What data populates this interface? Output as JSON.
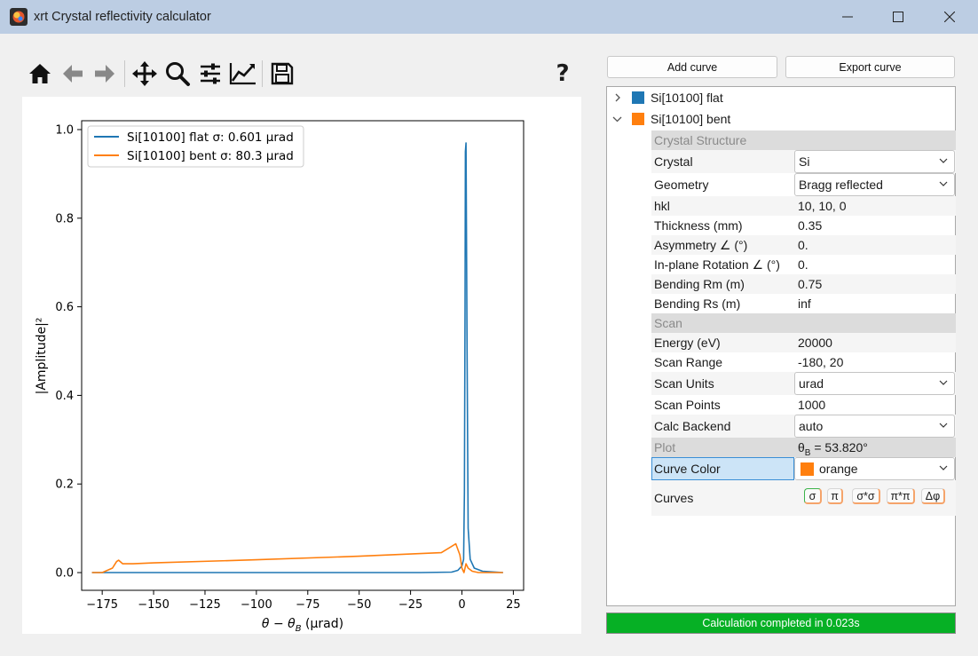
{
  "window": {
    "title": "xrt Crystal reflectivity calculator"
  },
  "toolbar": {
    "icons": [
      "home-icon",
      "back-arrow-icon",
      "forward-arrow-icon",
      "pan-icon",
      "zoom-icon",
      "subplots-icon",
      "edit-axis-icon",
      "save-icon",
      "help-icon"
    ],
    "help_label": "?"
  },
  "buttons": {
    "add_curve": "Add curve",
    "export_curve": "Export curve"
  },
  "tree": {
    "curves": [
      {
        "name": "Si[10100] flat",
        "color": "#1f77b4",
        "expanded": false
      },
      {
        "name": "Si[10100] bent",
        "color": "#ff7f0e",
        "expanded": true
      }
    ],
    "sections": {
      "crystal_structure": "Crystal Structure",
      "scan": "Scan",
      "plot": "Plot"
    },
    "props": {
      "crystal": {
        "label": "Crystal",
        "value": "Si"
      },
      "geometry": {
        "label": "Geometry",
        "value": "Bragg reflected"
      },
      "hkl": {
        "label": "hkl",
        "value": "10, 10, 0"
      },
      "thickness": {
        "label": "Thickness (mm)",
        "value": "0.35"
      },
      "asymmetry": {
        "label": "Asymmetry ∠ (°)",
        "value": "0."
      },
      "inplane": {
        "label": "In-plane Rotation ∠ (°)",
        "value": "0."
      },
      "bending_rm": {
        "label": "Bending Rm (m)",
        "value": "0.75"
      },
      "bending_rs": {
        "label": "Bending Rs (m)",
        "value": "inf"
      },
      "energy": {
        "label": "Energy (eV)",
        "value": "20000"
      },
      "scan_range": {
        "label": "Scan Range",
        "value": "-180, 20"
      },
      "scan_units": {
        "label": "Scan Units",
        "value": "urad"
      },
      "scan_points": {
        "label": "Scan Points",
        "value": "1000"
      },
      "calc_backend": {
        "label": "Calc Backend",
        "value": "auto"
      },
      "theta_b_sym": "θ",
      "theta_b_sub": "B",
      "theta_b_value": " = 53.820°",
      "curve_color": {
        "label": "Curve Color",
        "value": "orange",
        "swatch": "#ff7f0e"
      },
      "curves_label": "Curves",
      "curve_buttons": [
        "σ",
        "π",
        "σ*σ",
        "π*π",
        "Δφ"
      ]
    }
  },
  "status": {
    "text": "Calculation completed in 0.023s",
    "color": "#06b025"
  },
  "chart_data": {
    "type": "line",
    "xlabel": "θ − θ",
    "xlabel_sub": "B",
    "xlabel_unit": " (μrad)",
    "ylabel": "|Amplitude|²",
    "xlim": [
      -185,
      30
    ],
    "ylim": [
      -0.04,
      1.02
    ],
    "xticks": [
      -175,
      -150,
      -125,
      -100,
      -75,
      -50,
      -25,
      0,
      25
    ],
    "xtick_labels": [
      "−175",
      "−150",
      "−125",
      "−100",
      "−75",
      "−50",
      "−25",
      "0",
      "25"
    ],
    "yticks": [
      0.0,
      0.2,
      0.4,
      0.6,
      0.8,
      1.0
    ],
    "ytick_labels": [
      "0.0",
      "0.2",
      "0.4",
      "0.6",
      "0.8",
      "1.0"
    ],
    "legend_position": "top-left",
    "series": [
      {
        "name": "Si[10100] flat σ: 0.601 μrad",
        "color": "#1f77b4",
        "x": [
          -180,
          -20,
          -5,
          -2,
          -1,
          0,
          0.8,
          1.2,
          1.5,
          1.7,
          2.0,
          2.5,
          3.0,
          4,
          6,
          10,
          20
        ],
        "y": [
          0.0,
          0.0,
          0.001,
          0.005,
          0.01,
          0.015,
          0.03,
          0.18,
          0.6,
          0.95,
          0.97,
          0.5,
          0.1,
          0.03,
          0.01,
          0.003,
          0.0
        ]
      },
      {
        "name": "Si[10100] bent σ: 80.3 μrad",
        "color": "#ff7f0e",
        "x": [
          -180,
          -175,
          -170,
          -168,
          -167,
          -165,
          -160,
          -150,
          -100,
          -50,
          -10,
          -3,
          -1,
          0,
          1,
          2,
          3,
          5,
          8,
          12,
          20
        ],
        "y": [
          0.0,
          0.0,
          0.01,
          0.025,
          0.028,
          0.02,
          0.02,
          0.022,
          0.029,
          0.037,
          0.045,
          0.065,
          0.04,
          0.01,
          0.0,
          0.02,
          0.01,
          0.003,
          0.0,
          0.0,
          0.0
        ]
      }
    ]
  }
}
